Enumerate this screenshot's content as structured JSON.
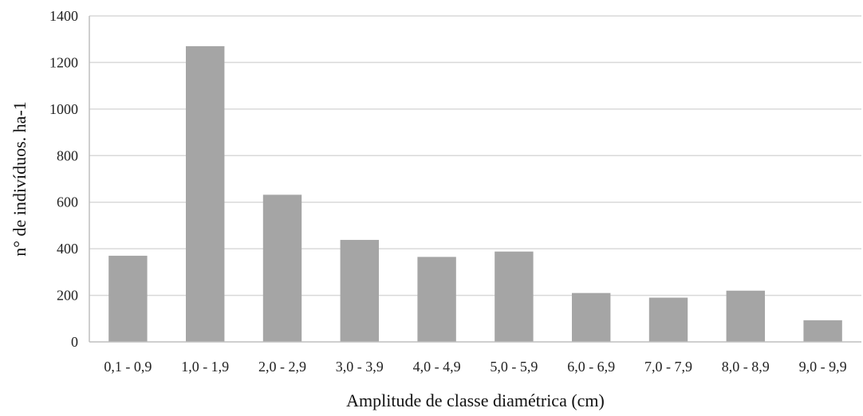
{
  "chart_data": {
    "type": "bar",
    "title": "",
    "xlabel": "Amplitude de classe diamétrica (cm)",
    "ylabel": "n° de indivíduos. ha-1",
    "categories": [
      "0,1 - 0,9",
      "1,0 - 1,9",
      "2,0 - 2,9",
      "3,0 - 3,9",
      "4,0 - 4,9",
      "5,0 - 5,9",
      "6,0 - 6,9",
      "7,0 - 7,9",
      "8,0 - 8,9",
      "9,0 - 9,9"
    ],
    "values": [
      370,
      1270,
      632,
      438,
      365,
      388,
      210,
      190,
      220,
      93
    ],
    "ylim": [
      0,
      1400
    ],
    "yticks": [
      0,
      200,
      400,
      600,
      800,
      1000,
      1200,
      1400
    ],
    "grid": true,
    "legend": "none",
    "colors": {
      "bar": "#a5a5a5",
      "grid": "#d9d9d9"
    }
  }
}
